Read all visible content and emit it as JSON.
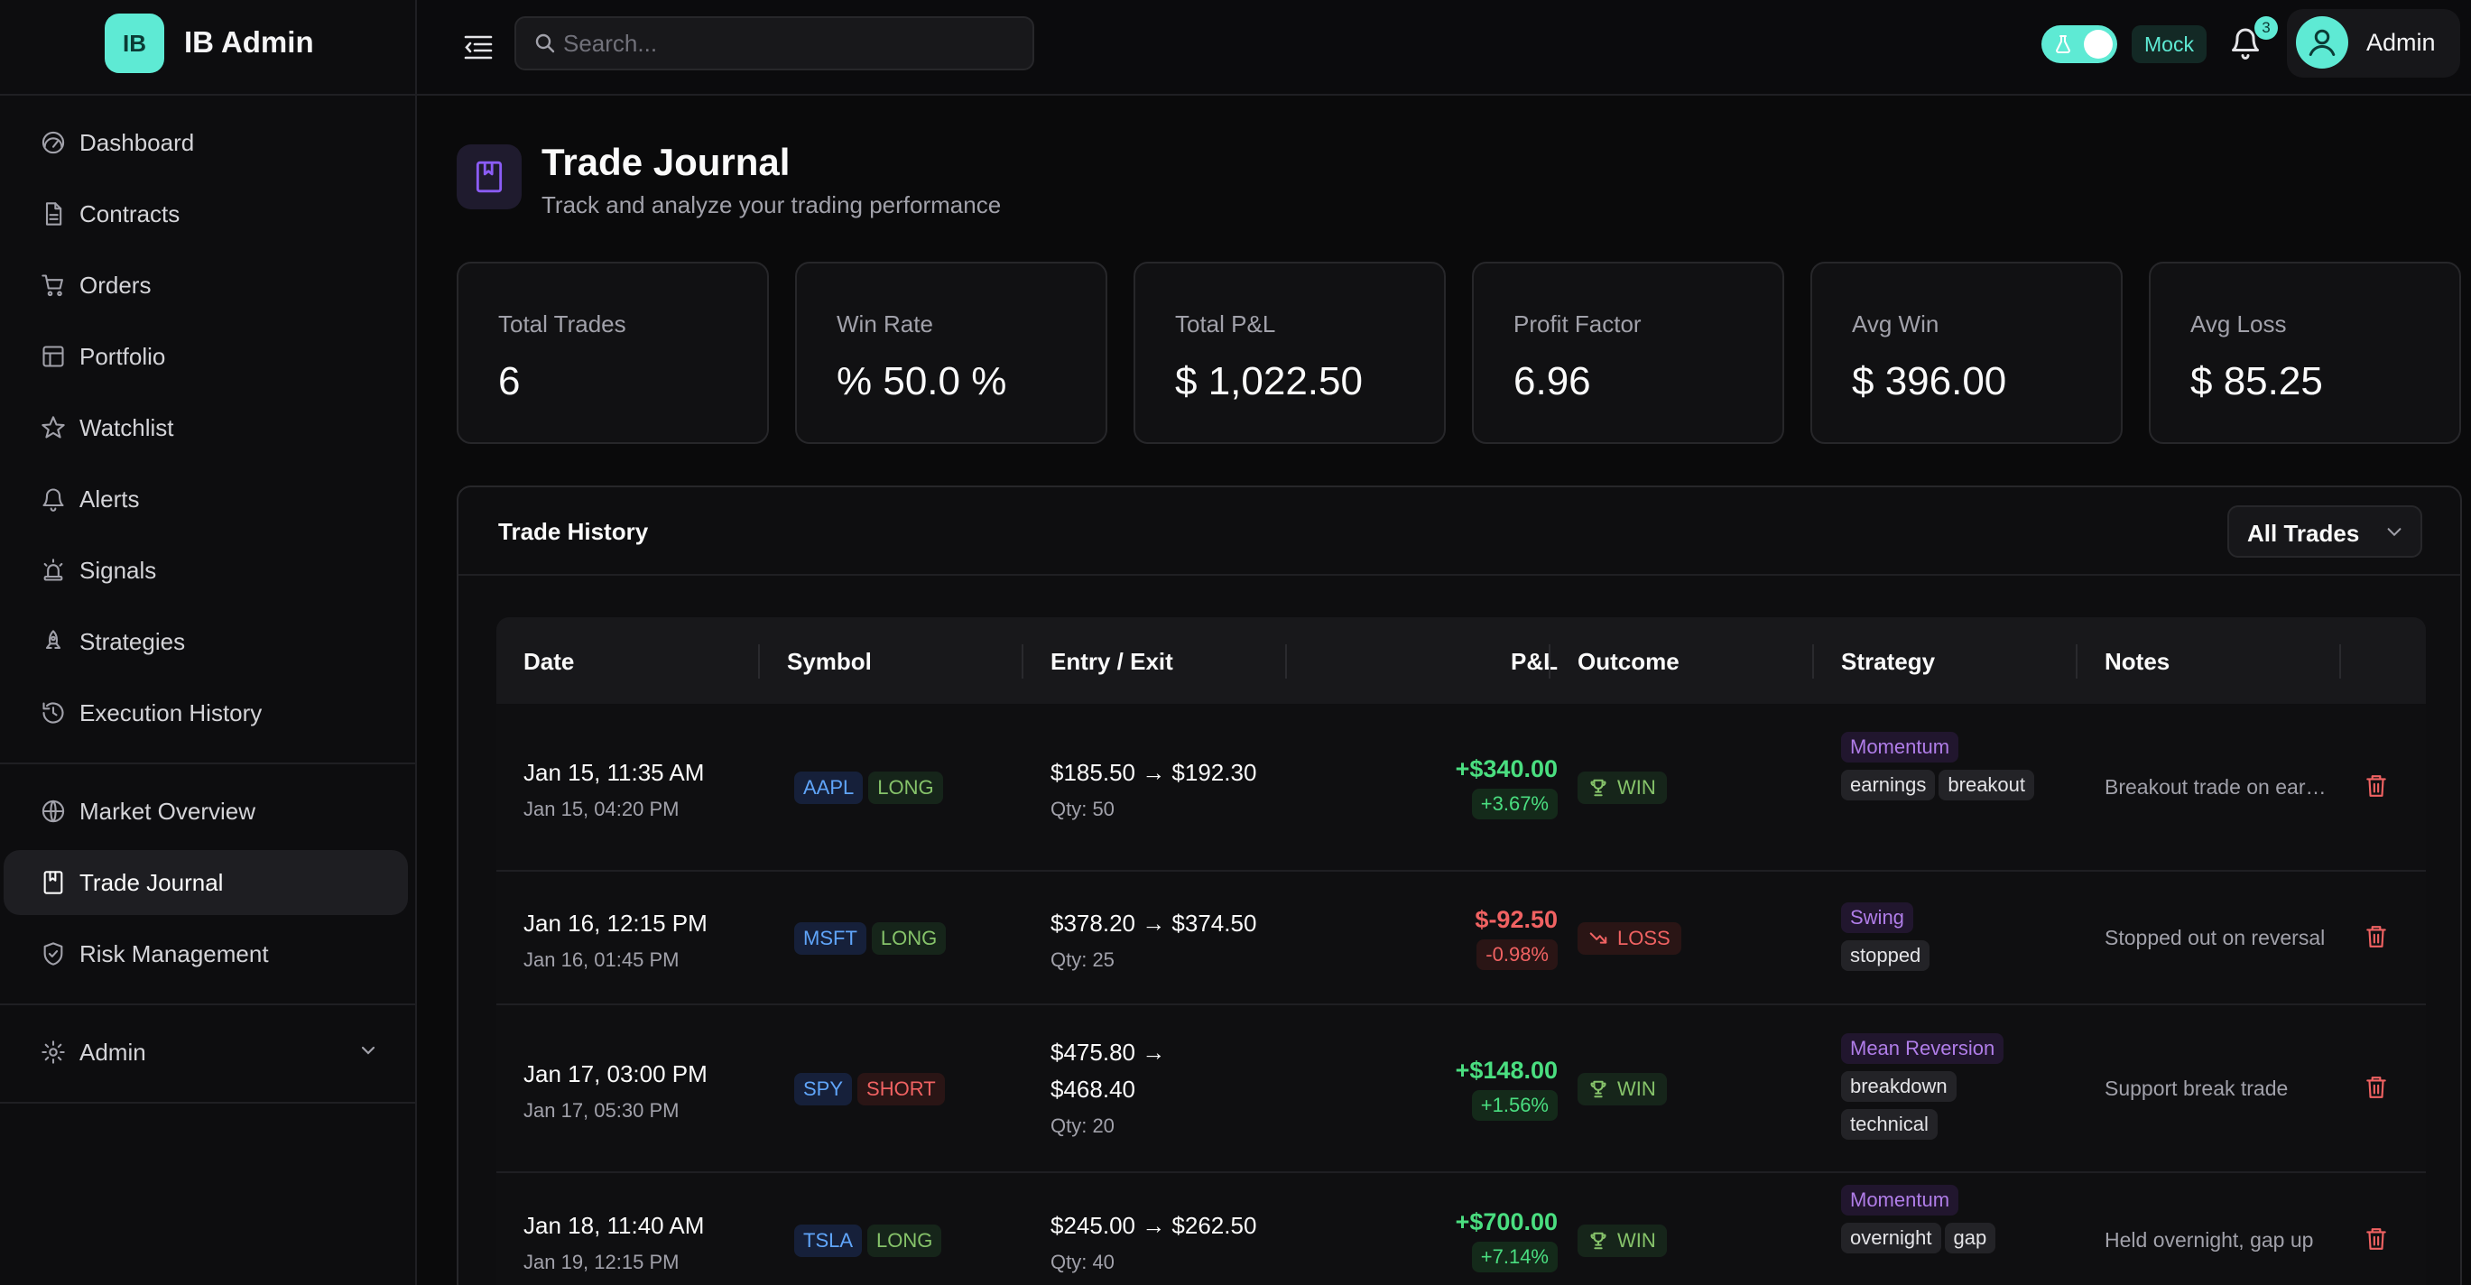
{
  "brand": {
    "logo_text": "IB",
    "name": "IB Admin"
  },
  "sidebar": {
    "groups": [
      [
        {
          "label": "Dashboard",
          "icon": "gauge-icon"
        },
        {
          "label": "Contracts",
          "icon": "file-icon"
        },
        {
          "label": "Orders",
          "icon": "cart-icon"
        },
        {
          "label": "Portfolio",
          "icon": "portfolio-icon"
        },
        {
          "label": "Watchlist",
          "icon": "star-icon"
        },
        {
          "label": "Alerts",
          "icon": "bell-icon"
        },
        {
          "label": "Signals",
          "icon": "siren-icon"
        },
        {
          "label": "Strategies",
          "icon": "rocket-icon"
        },
        {
          "label": "Execution History",
          "icon": "history-icon"
        }
      ],
      [
        {
          "label": "Market Overview",
          "icon": "globe-icon"
        },
        {
          "label": "Trade Journal",
          "icon": "journal-icon",
          "active": true
        },
        {
          "label": "Risk Management",
          "icon": "shield-icon"
        }
      ],
      [
        {
          "label": "Admin",
          "icon": "gear-icon",
          "expandable": true
        }
      ]
    ]
  },
  "header": {
    "search_placeholder": "Search...",
    "mock_label": "Mock",
    "notification_count": "3",
    "user_name": "Admin",
    "mock_enabled": true
  },
  "page": {
    "title": "Trade Journal",
    "subtitle": "Track and analyze your trading performance"
  },
  "stats": [
    {
      "label": "Total Trades",
      "value": "6"
    },
    {
      "label": "Win Rate",
      "value": "% 50.0 %"
    },
    {
      "label": "Total P&L",
      "value": "$ 1,022.50"
    },
    {
      "label": "Profit Factor",
      "value": "6.96"
    },
    {
      "label": "Avg Win",
      "value": "$ 396.00"
    },
    {
      "label": "Avg Loss",
      "value": "$ 85.25"
    }
  ],
  "history": {
    "title": "Trade History",
    "filter_value": "All Trades",
    "columns": [
      "Date",
      "Symbol",
      "Entry / Exit",
      "P&L",
      "Outcome",
      "Strategy",
      "Notes"
    ],
    "rows": [
      {
        "entry_date": "Jan 15, 11:35 AM",
        "exit_date": "Jan 15, 04:20 PM",
        "symbol": "AAPL",
        "side": "LONG",
        "entry_exit_line1": "$185.50 → $192.30",
        "entry_exit_line2": "",
        "qty": "Qty: 50",
        "pnl": "+$340.00",
        "pnl_pct": "+3.67%",
        "positive": true,
        "outcome": "WIN",
        "strategy": "Momentum",
        "tags": [
          "earnings",
          "breakout"
        ],
        "notes": "Breakout trade on earnings"
      },
      {
        "entry_date": "Jan 16, 12:15 PM",
        "exit_date": "Jan 16, 01:45 PM",
        "symbol": "MSFT",
        "side": "LONG",
        "entry_exit_line1": "$378.20 → $374.50",
        "entry_exit_line2": "",
        "qty": "Qty: 25",
        "pnl": "$-92.50",
        "pnl_pct": "-0.98%",
        "positive": false,
        "outcome": "LOSS",
        "strategy": "Swing",
        "tags": [
          "stopped"
        ],
        "notes": "Stopped out on reversal"
      },
      {
        "entry_date": "Jan 17, 03:00 PM",
        "exit_date": "Jan 17, 05:30 PM",
        "symbol": "SPY",
        "side": "SHORT",
        "entry_exit_line1": "$475.80 →",
        "entry_exit_line2": "$468.40",
        "qty": "Qty: 20",
        "pnl": "+$148.00",
        "pnl_pct": "+1.56%",
        "positive": true,
        "outcome": "WIN",
        "strategy": "Mean Reversion",
        "tags": [
          "breakdown",
          "technical"
        ],
        "notes": "Support break trade"
      },
      {
        "entry_date": "Jan 18, 11:40 AM",
        "exit_date": "Jan 19, 12:15 PM",
        "symbol": "TSLA",
        "side": "LONG",
        "entry_exit_line1": "$245.00 → $262.50",
        "entry_exit_line2": "",
        "qty": "Qty: 40",
        "pnl": "+$700.00",
        "pnl_pct": "+7.14%",
        "positive": true,
        "outcome": "WIN",
        "strategy": "Momentum",
        "tags": [
          "overnight",
          "gap"
        ],
        "notes": "Held overnight, gap up"
      }
    ]
  },
  "colors": {
    "accent": "#5eead4",
    "win": "#4ade80",
    "loss": "#f06262",
    "strategy": "#b07de8",
    "symbol": "#60a5fa"
  }
}
